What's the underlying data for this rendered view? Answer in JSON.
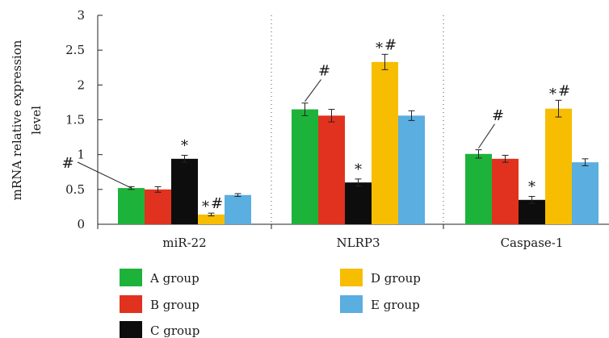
{
  "chart_data": {
    "type": "bar",
    "title": "",
    "xlabel": "",
    "ylabel_lines": [
      "mRNA relative expression",
      "level"
    ],
    "ylim": [
      0,
      3
    ],
    "yticks": [
      {
        "value": 0,
        "label": "0"
      },
      {
        "value": 0.5,
        "label": "0.5"
      },
      {
        "value": 1,
        "label": "1"
      },
      {
        "value": 1.5,
        "label": "1.5"
      },
      {
        "value": 2,
        "label": "2"
      },
      {
        "value": 2.5,
        "label": "2.5"
      },
      {
        "value": 3,
        "label": "3"
      }
    ],
    "categories": [
      "miR-22",
      "NLRP3",
      "Caspase-1"
    ],
    "series": [
      {
        "name": "A group",
        "color": "#1db33a",
        "values": [
          0.52,
          1.65,
          1.01
        ],
        "errors": [
          0.02,
          0.09,
          0.06
        ],
        "marks": [
          "#",
          "#",
          "#"
        ]
      },
      {
        "name": "B group",
        "color": "#e0321e",
        "values": [
          0.5,
          1.56,
          0.94
        ],
        "errors": [
          0.04,
          0.09,
          0.05
        ],
        "marks": [
          "",
          "",
          ""
        ]
      },
      {
        "name": "C group",
        "color": "#0d0d0d",
        "values": [
          0.94,
          0.6,
          0.35
        ],
        "errors": [
          0.05,
          0.05,
          0.05
        ],
        "marks": [
          "*",
          "*",
          "*"
        ]
      },
      {
        "name": "D group",
        "color": "#f7bd00",
        "values": [
          0.14,
          2.33,
          1.66
        ],
        "errors": [
          0.02,
          0.11,
          0.12
        ],
        "marks": [
          "*#",
          "*#",
          "*#"
        ]
      },
      {
        "name": "E group",
        "color": "#5aaee0",
        "values": [
          0.42,
          1.56,
          0.89
        ],
        "errors": [
          0.02,
          0.07,
          0.05
        ],
        "marks": [
          "",
          "",
          ""
        ]
      }
    ],
    "separators": "dotted vertical lines between categories",
    "grid": false,
    "legend_position": "bottom"
  }
}
